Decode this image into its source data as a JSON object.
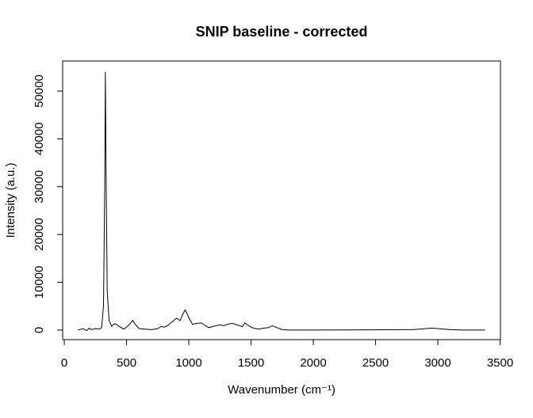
{
  "chart_data": {
    "type": "line",
    "title": "SNIP baseline - corrected",
    "xlabel": "Wavenumber (cm⁻¹)",
    "ylabel": "Intensity (a.u.)",
    "x": [
      110,
      150,
      180,
      200,
      220,
      250,
      280,
      300,
      315,
      325,
      330,
      335,
      345,
      360,
      380,
      400,
      420,
      450,
      480,
      520,
      550,
      570,
      600,
      650,
      700,
      750,
      780,
      800,
      830,
      850,
      880,
      900,
      930,
      950,
      970,
      980,
      1000,
      1030,
      1060,
      1100,
      1130,
      1160,
      1200,
      1250,
      1280,
      1320,
      1350,
      1400,
      1430,
      1450,
      1480,
      1520,
      1560,
      1600,
      1640,
      1670,
      1700,
      1750,
      1800,
      2000,
      2500,
      2800,
      2900,
      2950,
      3000,
      3100,
      3200,
      3380
    ],
    "series": [
      {
        "name": "corrected",
        "color": "#000000",
        "values": [
          0,
          300,
          -100,
          400,
          100,
          300,
          200,
          500,
          5000,
          30000,
          54000,
          35000,
          8000,
          2000,
          800,
          1300,
          1200,
          600,
          200,
          1100,
          2000,
          1200,
          300,
          200,
          100,
          300,
          800,
          600,
          900,
          1400,
          2000,
          2500,
          2000,
          3200,
          4200,
          3800,
          2600,
          1200,
          1400,
          1500,
          1000,
          500,
          800,
          1100,
          900,
          1300,
          1400,
          1000,
          700,
          1500,
          900,
          400,
          200,
          400,
          500,
          900,
          600,
          100,
          0,
          0,
          50,
          100,
          300,
          400,
          300,
          100,
          0,
          0
        ]
      }
    ],
    "xlim": [
      -13,
      3503
    ],
    "ylim": [
      -2000,
      56300
    ],
    "xticks": [
      0,
      500,
      1000,
      1500,
      2000,
      2500,
      3000,
      3500
    ],
    "yticks": [
      0,
      10000,
      20000,
      30000,
      40000,
      50000
    ]
  }
}
